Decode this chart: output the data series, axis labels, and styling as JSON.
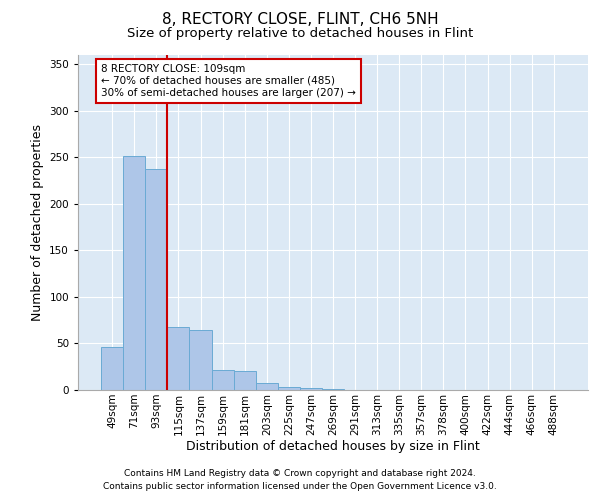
{
  "title": "8, RECTORY CLOSE, FLINT, CH6 5NH",
  "subtitle": "Size of property relative to detached houses in Flint",
  "xlabel": "Distribution of detached houses by size in Flint",
  "ylabel": "Number of detached properties",
  "footnote1": "Contains HM Land Registry data © Crown copyright and database right 2024.",
  "footnote2": "Contains public sector information licensed under the Open Government Licence v3.0.",
  "bin_labels": [
    "49sqm",
    "71sqm",
    "93sqm",
    "115sqm",
    "137sqm",
    "159sqm",
    "181sqm",
    "203sqm",
    "225sqm",
    "247sqm",
    "269sqm",
    "291sqm",
    "313sqm",
    "335sqm",
    "357sqm",
    "378sqm",
    "400sqm",
    "422sqm",
    "444sqm",
    "466sqm",
    "488sqm"
  ],
  "bar_values": [
    46,
    252,
    238,
    68,
    65,
    22,
    20,
    8,
    3,
    2,
    1,
    0,
    0,
    0,
    0,
    0,
    0,
    0,
    0,
    0,
    0
  ],
  "bar_color": "#aec6e8",
  "bar_edge_color": "#6aaad4",
  "background_color": "#dce9f5",
  "grid_color": "#ffffff",
  "ylim": [
    0,
    360
  ],
  "yticks": [
    0,
    50,
    100,
    150,
    200,
    250,
    300,
    350
  ],
  "vline_color": "#cc0000",
  "vline_bin_index": 2.5,
  "annotation_text": "8 RECTORY CLOSE: 109sqm\n← 70% of detached houses are smaller (485)\n30% of semi-detached houses are larger (207) →",
  "annotation_box_color": "#ffffff",
  "annotation_edge_color": "#cc0000",
  "title_fontsize": 11,
  "subtitle_fontsize": 9.5,
  "axis_label_fontsize": 9,
  "tick_fontsize": 7.5,
  "annotation_fontsize": 7.5,
  "footnote_fontsize": 6.5
}
